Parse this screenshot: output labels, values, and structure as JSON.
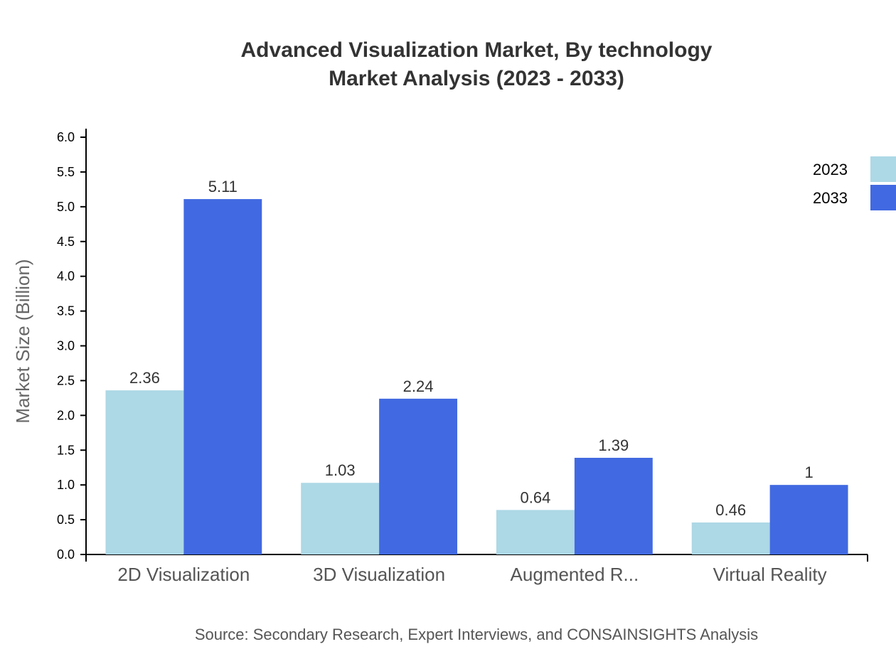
{
  "chart_data": {
    "type": "bar",
    "title": [
      "Advanced Visualization Market, By technology",
      "Market Analysis (2023 - 2033)"
    ],
    "xlabel": "",
    "ylabel": "Market Size (Billion)",
    "ylim": [
      0,
      6.0
    ],
    "yticks": [
      "0.0",
      "0.5",
      "1.0",
      "1.5",
      "2.0",
      "2.5",
      "3.0",
      "3.5",
      "4.0",
      "4.5",
      "5.0",
      "5.5",
      "6.0"
    ],
    "categories": [
      "2D Visualization",
      "3D Visualization",
      "Augmented R...",
      "Virtual Reality"
    ],
    "series": [
      {
        "name": "2023",
        "color": "#ADD8E6",
        "values": [
          2.36,
          1.03,
          0.64,
          0.46
        ]
      },
      {
        "name": "2033",
        "color": "#4169E1",
        "values": [
          5.11,
          2.24,
          1.39,
          1
        ]
      }
    ],
    "legend_position": "top-right",
    "grid": false,
    "source": "Source: Secondary Research, Expert Interviews, and CONSAINSIGHTS Analysis"
  }
}
